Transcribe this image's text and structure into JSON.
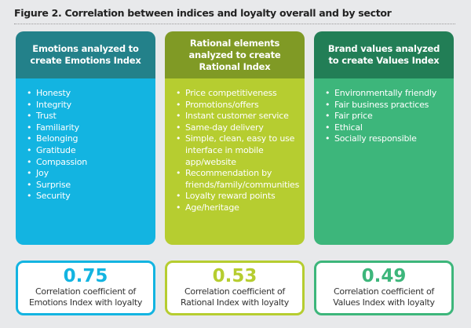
{
  "title": "Figure 2. Correlation between indices and loyalty overall and by sector",
  "panels": [
    {
      "header": "Emotions analyzed to create Emotions Index",
      "items": [
        "Honesty",
        "Integrity",
        "Trust",
        "Familiarity",
        "Belonging",
        "Gratitude",
        "Compassion",
        "Joy",
        "Surprise",
        "Security"
      ],
      "value": "0.75",
      "caption_line1": "Correlation coefficient of",
      "caption_line2": "Emotions Index with loyalty",
      "header_color": "#23818a",
      "body_color": "#13b4e1"
    },
    {
      "header": "Rational elements analyzed to create Rational Index",
      "items": [
        "Price competitiveness",
        "Promotions/offers",
        "Instant customer service",
        "Same-day delivery",
        "Simple, clean, easy to use interface in mobile app/website",
        "Recommendation by friends/family/communities",
        "Loyalty reward points",
        "Age/heritage"
      ],
      "value": "0.53",
      "caption_line1": "Correlation coefficient of",
      "caption_line2": "Rational Index with loyalty",
      "header_color": "#809a25",
      "body_color": "#b6cd30"
    },
    {
      "header": "Brand values analyzed to create Values Index",
      "items": [
        "Environmentally friendly",
        "Fair business practices",
        "Fair price",
        "Ethical",
        "Socially responsible"
      ],
      "value": "0.49",
      "caption_line1": "Correlation coefficient of",
      "caption_line2": "Values Index with loyalty",
      "header_color": "#227e56",
      "body_color": "#3db67b"
    }
  ]
}
